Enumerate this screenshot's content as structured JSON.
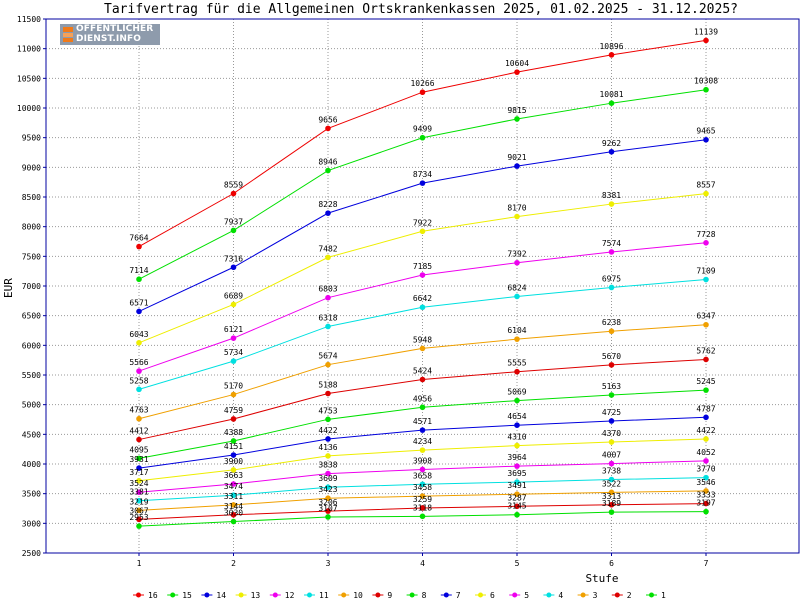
{
  "chart_data": {
    "type": "line",
    "title": "Tarifvertrag für die Allgemeinen Ortskrankenkassen 2025, 01.02.2025 - 31.12.2025?",
    "xlabel": "Stufe",
    "ylabel": "EUR",
    "x": [
      "1",
      "2",
      "3",
      "4",
      "5",
      "6",
      "7"
    ],
    "ylim": [
      2500,
      11500
    ],
    "yticks": [
      "2500",
      "3000",
      "3500",
      "4000",
      "4500",
      "5000",
      "5500",
      "6000",
      "6500",
      "7000",
      "7500",
      "8000",
      "8500",
      "9000",
      "9500",
      "10000",
      "10500",
      "11000",
      "11500"
    ],
    "grid": true,
    "legend_position": "bottom",
    "series": [
      {
        "name": "16",
        "color": "#ee0000",
        "values": [
          7664,
          8559,
          9656,
          10266,
          10604,
          10896,
          11139
        ]
      },
      {
        "name": "15",
        "color": "#00e000",
        "values": [
          7114,
          7937,
          8946,
          9499,
          9815,
          10081,
          10308
        ]
      },
      {
        "name": "14",
        "color": "#0000dd",
        "values": [
          6571,
          7316,
          8228,
          8734,
          9021,
          9262,
          9465
        ]
      },
      {
        "name": "13",
        "color": "#eeee00",
        "values": [
          6043,
          6689,
          7482,
          7922,
          8170,
          8381,
          8557
        ]
      },
      {
        "name": "12",
        "color": "#ee00ee",
        "values": [
          5566,
          6121,
          6803,
          7185,
          7392,
          7574,
          7728
        ]
      },
      {
        "name": "11",
        "color": "#00e0e0",
        "values": [
          5258,
          5734,
          6318,
          6642,
          6824,
          6975,
          7109
        ]
      },
      {
        "name": "10",
        "color": "#f0a000",
        "values": [
          4763,
          5170,
          5674,
          5948,
          6104,
          6238,
          6347
        ]
      },
      {
        "name": "9",
        "color": "#dd0000",
        "values": [
          4412,
          4759,
          5188,
          5424,
          5555,
          5670,
          5762
        ]
      },
      {
        "name": "8",
        "color": "#00e000",
        "values": [
          4095,
          4388,
          4753,
          4956,
          5069,
          5163,
          5245
        ]
      },
      {
        "name": "7",
        "color": "#0000dd",
        "values": [
          3931,
          4151,
          4422,
          4571,
          4654,
          4725,
          4787
        ]
      },
      {
        "name": "6",
        "color": "#eeee00",
        "values": [
          3717,
          3900,
          4136,
          4234,
          4310,
          4370,
          4422
        ]
      },
      {
        "name": "5",
        "color": "#ee00ee",
        "values": [
          3524,
          3663,
          3838,
          3908,
          3964,
          4007,
          4052
        ]
      },
      {
        "name": "4",
        "color": "#00e0e0",
        "values": [
          3381,
          3474,
          3609,
          3658,
          3695,
          3738,
          3770
        ]
      },
      {
        "name": "3",
        "color": "#f0a000",
        "values": [
          3219,
          3311,
          3423,
          3458,
          3491,
          3522,
          3546
        ]
      },
      {
        "name": "2",
        "color": "#dd0000",
        "values": [
          3067,
          3144,
          3206,
          3259,
          3287,
          3313,
          3333
        ]
      },
      {
        "name": "1",
        "color": "#00e000",
        "values": [
          2953,
          3030,
          3107,
          3118,
          3145,
          3189,
          3197
        ]
      }
    ]
  },
  "logo": {
    "line1": "ÖFFENTLICHER",
    "line2": "DIENST.INFO"
  },
  "colors": {
    "axis": "#0000a0",
    "grid": "#999999",
    "text": "#000000"
  }
}
